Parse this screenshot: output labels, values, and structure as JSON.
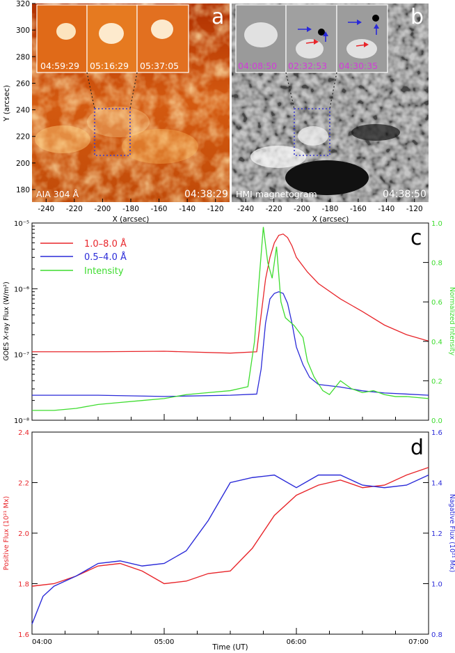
{
  "panels": {
    "a": {
      "letter": "a",
      "instrument": "AIA 304 Å",
      "time": "04:38:29",
      "inset_times": [
        "04:59:29",
        "05:16:29",
        "05:37:05"
      ],
      "xlabel": "X (arcsec)",
      "ylabel": "Y (arcsec)",
      "xticks": [
        "-240",
        "-220",
        "-200",
        "-180",
        "-160",
        "-140",
        "-120"
      ],
      "yticks": [
        "180",
        "200",
        "220",
        "240",
        "260",
        "280",
        "300",
        "320"
      ]
    },
    "b": {
      "letter": "b",
      "instrument": "HMI magnetogram",
      "time": "04:38:50",
      "inset_times": [
        "04:08:50",
        "02:32:53",
        "04:30:35"
      ],
      "xlabel": "X (arcsec)",
      "xticks": [
        "-240",
        "-220",
        "-200",
        "-180",
        "-160",
        "-140",
        "-120"
      ]
    }
  },
  "colors": {
    "red": "#e8252a",
    "blue": "#2a2ad8",
    "green": "#3ddc2e",
    "magenta": "#d23cd8",
    "box": "#3a3ad0"
  },
  "chart_data": [
    {
      "type": "line",
      "panel": "c",
      "ylabel": "GOES X-ray Flux (W/m²)",
      "ylabel_right": "Normalized Intensity",
      "yscale": "log",
      "ylim": [
        1e-08,
        1e-05
      ],
      "yticks": [
        "10⁻⁸",
        "10⁻⁷",
        "10⁻⁶",
        "10⁻⁵"
      ],
      "ylim_right": [
        0,
        1
      ],
      "yticks_right": [
        "0.0",
        "0.2",
        "0.4",
        "0.6",
        "0.8",
        "1.0"
      ],
      "xlim": [
        "04:00",
        "07:00"
      ],
      "legend": [
        "1.0–8.0 Å",
        "0.5–4.0 Å",
        "Intensity"
      ],
      "series": [
        {
          "name": "1.0–8.0 Å",
          "x": [
            "04:00",
            "04:30",
            "05:00",
            "05:30",
            "05:42",
            "05:44",
            "05:46",
            "05:48",
            "05:50",
            "05:52",
            "05:54",
            "05:56",
            "05:58",
            "06:00",
            "06:05",
            "06:10",
            "06:20",
            "06:30",
            "06:40",
            "06:50",
            "07:00"
          ],
          "values": [
            1.1e-07,
            1.1e-07,
            1.12e-07,
            1.05e-07,
            1.1e-07,
            4e-07,
            1.4e-06,
            3e-06,
            5e-06,
            6.5e-06,
            6.8e-06,
            6e-06,
            4.5e-06,
            3e-06,
            1.8e-06,
            1.2e-06,
            7e-07,
            4.5e-07,
            2.8e-07,
            2e-07,
            1.6e-07
          ]
        },
        {
          "name": "0.5–4.0 Å",
          "x": [
            "04:00",
            "04:30",
            "05:00",
            "05:30",
            "05:42",
            "05:44",
            "05:46",
            "05:48",
            "05:50",
            "05:52",
            "05:54",
            "05:56",
            "05:58",
            "06:00",
            "06:03",
            "06:06",
            "06:10",
            "06:20",
            "06:30",
            "06:40",
            "06:50",
            "07:00"
          ],
          "values": [
            2.4e-08,
            2.4e-08,
            2.3e-08,
            2.4e-08,
            2.5e-08,
            6e-08,
            3e-07,
            7e-07,
            8.5e-07,
            9e-07,
            8.5e-07,
            6e-07,
            3e-07,
            1.3e-07,
            7e-08,
            4.5e-08,
            3.5e-08,
            3.2e-08,
            2.8e-08,
            2.6e-08,
            2.5e-08,
            2.4e-08
          ]
        },
        {
          "name": "Intensity",
          "x": [
            "04:00",
            "04:10",
            "04:20",
            "04:30",
            "04:40",
            "04:50",
            "05:00",
            "05:10",
            "05:20",
            "05:30",
            "05:38",
            "05:41",
            "05:43",
            "05:45",
            "05:47",
            "05:49",
            "05:51",
            "05:53",
            "05:55",
            "05:57",
            "05:59",
            "06:01",
            "06:03",
            "06:05",
            "06:08",
            "06:12",
            "06:15",
            "06:20",
            "06:25",
            "06:30",
            "06:35",
            "06:40",
            "06:45",
            "06:50",
            "07:00"
          ],
          "values": [
            0.05,
            0.05,
            0.06,
            0.08,
            0.09,
            0.1,
            0.11,
            0.13,
            0.14,
            0.15,
            0.17,
            0.4,
            0.7,
            0.98,
            0.8,
            0.72,
            0.88,
            0.6,
            0.52,
            0.5,
            0.48,
            0.45,
            0.42,
            0.3,
            0.22,
            0.15,
            0.13,
            0.2,
            0.16,
            0.14,
            0.15,
            0.13,
            0.12,
            0.12,
            0.11
          ]
        }
      ]
    },
    {
      "type": "line",
      "panel": "d",
      "xlabel": "Time (UT)",
      "ylabel": "Positive Flux (10²¹ Mx)",
      "ylabel_right": "Nagative Flux (10²¹ Mx)",
      "ylim": [
        1.6,
        2.4
      ],
      "yticks": [
        "1.6",
        "1.8",
        "2.0",
        "2.2",
        "2.4"
      ],
      "ylim_right": [
        0.8,
        1.6
      ],
      "yticks_right": [
        "0.8",
        "1.0",
        "1.2",
        "1.4",
        "1.6"
      ],
      "xlim": [
        "04:00",
        "07:00"
      ],
      "xticks": [
        "04:00",
        "05:00",
        "06:00",
        "07:00"
      ],
      "series": [
        {
          "name": "Positive",
          "axis": "left",
          "x": [
            "04:00",
            "04:10",
            "04:20",
            "04:30",
            "04:40",
            "04:50",
            "05:00",
            "05:10",
            "05:20",
            "05:30",
            "05:40",
            "05:50",
            "06:00",
            "06:10",
            "06:20",
            "06:30",
            "06:40",
            "06:50",
            "07:00"
          ],
          "values": [
            1.79,
            1.8,
            1.83,
            1.87,
            1.88,
            1.85,
            1.8,
            1.81,
            1.84,
            1.85,
            1.94,
            2.07,
            2.15,
            2.19,
            2.21,
            2.18,
            2.19,
            2.23,
            2.26
          ]
        },
        {
          "name": "Negative",
          "axis": "right",
          "x": [
            "04:00",
            "04:05",
            "04:10",
            "04:20",
            "04:30",
            "04:40",
            "04:50",
            "05:00",
            "05:10",
            "05:20",
            "05:30",
            "05:40",
            "05:50",
            "06:00",
            "06:10",
            "06:20",
            "06:30",
            "06:40",
            "06:50",
            "07:00"
          ],
          "values": [
            0.84,
            0.95,
            0.99,
            1.03,
            1.08,
            1.09,
            1.07,
            1.08,
            1.13,
            1.25,
            1.4,
            1.42,
            1.43,
            1.38,
            1.43,
            1.43,
            1.39,
            1.38,
            1.39,
            1.43
          ]
        }
      ]
    }
  ]
}
